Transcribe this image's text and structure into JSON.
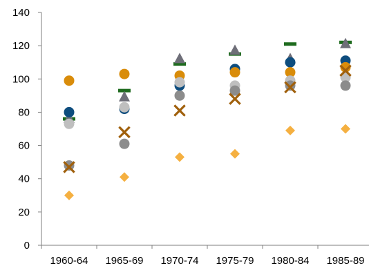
{
  "chart_data": {
    "type": "scatter",
    "title": "",
    "xlabel": "",
    "ylabel": "",
    "categories": [
      "1960-64",
      "1965-69",
      "1970-74",
      "1975-79",
      "1980-84",
      "1985-89"
    ],
    "ylim": [
      0,
      140
    ],
    "yticks": [
      0,
      20,
      40,
      60,
      80,
      100,
      120,
      140
    ],
    "grid": false,
    "legend": "none",
    "series": [
      {
        "marker": "dash",
        "color": "#1e6b1e",
        "values": [
          76,
          93,
          109,
          115,
          121,
          122
        ]
      },
      {
        "marker": "triangle",
        "color": "#6e6e78",
        "values": [
          76,
          89,
          112,
          117,
          112,
          121
        ]
      },
      {
        "marker": "circle",
        "color": "#0e4d7e",
        "values": [
          80,
          82,
          96,
          106,
          110,
          111
        ]
      },
      {
        "marker": "circle",
        "color": "#d98c0a",
        "values": [
          99,
          103,
          102,
          104,
          104,
          107
        ]
      },
      {
        "marker": "circle",
        "color": "#bfbfbf",
        "values": [
          73,
          83,
          98,
          96,
          99,
          101
        ]
      },
      {
        "marker": "circle",
        "color": "#8c8c8c",
        "values": [
          48,
          61,
          90,
          93,
          96,
          96
        ]
      },
      {
        "marker": "cross",
        "color": "#a0600c",
        "values": [
          47,
          68,
          81,
          88,
          95,
          105
        ]
      },
      {
        "marker": "diamond",
        "color": "#f5b041",
        "values": [
          30,
          41,
          53,
          55,
          69,
          70
        ]
      }
    ]
  }
}
